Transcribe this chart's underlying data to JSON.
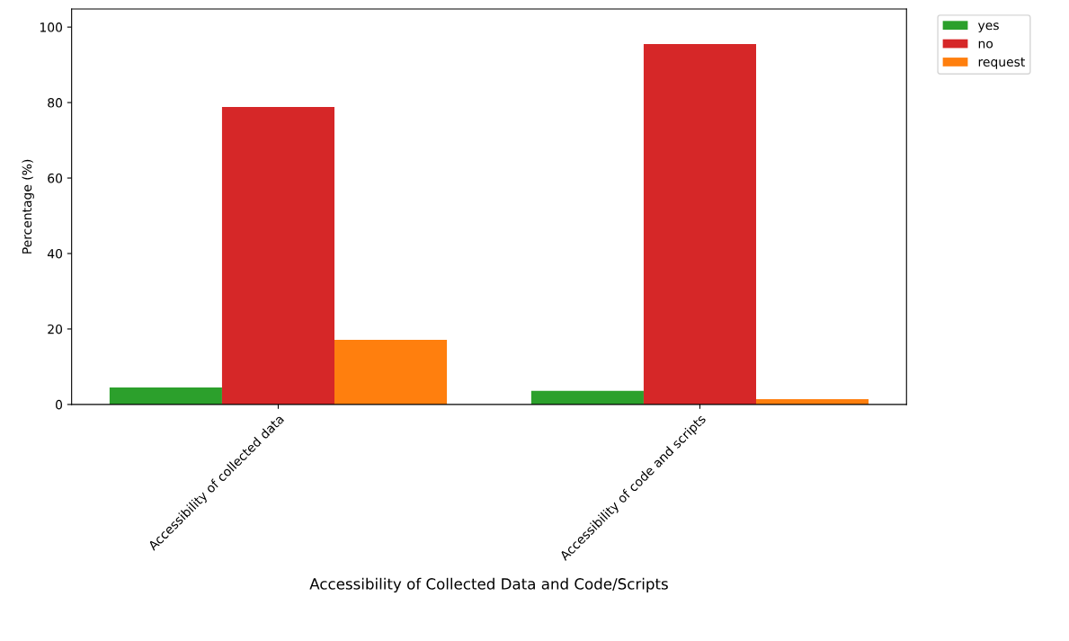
{
  "chart_data": {
    "type": "bar",
    "xlabel": "Accessibility of Collected Data and Code/Scripts",
    "ylabel": "Percentage (%)",
    "categories": [
      "Accessibility of collected data",
      "Accessibility of code and scripts"
    ],
    "series": [
      {
        "name": "yes",
        "color": "#2ca02c",
        "values": [
          4.5,
          3.6
        ]
      },
      {
        "name": "no",
        "color": "#d62728",
        "values": [
          78.8,
          95.5
        ]
      },
      {
        "name": "request",
        "color": "#ff7f0e",
        "values": [
          17.1,
          1.4
        ]
      }
    ],
    "ylim": [
      0,
      104.8
    ],
    "yticks": [
      0,
      20,
      40,
      60,
      80,
      100
    ],
    "grid": false,
    "legend": "top right"
  }
}
